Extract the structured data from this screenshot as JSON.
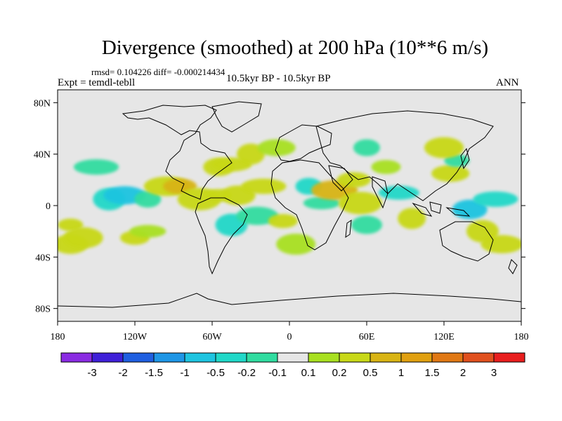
{
  "title": "Divergence (smoothed) at 200 hPa (10**6 m/s)",
  "stats": "rmsd= 0.104226 diff= -0.000214434",
  "experiment": "Expt = temdl-tebll",
  "period": "10.5kyr BP - 10.5kyr BP",
  "season": "ANN",
  "map": {
    "projection": "cylindrical equidistant",
    "lon_range": [
      -180,
      180
    ],
    "lat_range": [
      -90,
      90
    ],
    "background_color": "#e6e6e6",
    "coastline_color": "#000000",
    "lat_ticks": [
      {
        "value": 80,
        "label": "80N"
      },
      {
        "value": 40,
        "label": "40N"
      },
      {
        "value": 0,
        "label": "0"
      },
      {
        "value": -40,
        "label": "40S"
      },
      {
        "value": -80,
        "label": "80S"
      }
    ],
    "lon_ticks": [
      {
        "value": -180,
        "label": "180"
      },
      {
        "value": -120,
        "label": "120W"
      },
      {
        "value": -60,
        "label": "60W"
      },
      {
        "value": 0,
        "label": "0"
      },
      {
        "value": 60,
        "label": "60E"
      },
      {
        "value": 120,
        "label": "120E"
      },
      {
        "value": 180,
        "label": "180"
      }
    ]
  },
  "colorbar": {
    "colors": [
      "#8a2be2",
      "#3f20d8",
      "#1f5fe0",
      "#1e96e6",
      "#1ec4e0",
      "#20d8c8",
      "#30dca0",
      "#e6e6e6",
      "#a8e020",
      "#c8d818",
      "#d8b414",
      "#e0a010",
      "#e07814",
      "#e0501e",
      "#e81e1e"
    ],
    "labels": [
      "-3",
      "-2",
      "-1.5",
      "-1",
      "-0.5",
      "-0.2",
      "-0.1",
      "0.1",
      "0.2",
      "0.5",
      "1",
      "1.5",
      "2",
      "3"
    ]
  },
  "chart_data": {
    "type": "heatmap",
    "variable": "Divergence (smoothed) at 200 hPa",
    "units": "10**6 m/s",
    "levels": [
      -3,
      -2,
      -1.5,
      -1,
      -0.5,
      -0.2,
      -0.1,
      0.1,
      0.2,
      0.5,
      1,
      1.5,
      2,
      3
    ],
    "features": [
      {
        "lon": -170,
        "lat": -15,
        "value": 0.2
      },
      {
        "lon": -170,
        "lat": -30,
        "value": 0.3
      },
      {
        "lon": -150,
        "lat": 30,
        "value": -0.2
      },
      {
        "lon": -140,
        "lat": 5,
        "value": -0.4
      },
      {
        "lon": -128,
        "lat": 8,
        "value": -0.6
      },
      {
        "lon": -120,
        "lat": -25,
        "value": 0.2
      },
      {
        "lon": -160,
        "lat": -25,
        "value": 0.25
      },
      {
        "lon": -110,
        "lat": 5,
        "value": -0.15
      },
      {
        "lon": -110,
        "lat": -20,
        "value": 0.15
      },
      {
        "lon": -95,
        "lat": 15,
        "value": 0.3
      },
      {
        "lon": -85,
        "lat": 15,
        "value": 0.5
      },
      {
        "lon": -70,
        "lat": 5,
        "value": 0.2
      },
      {
        "lon": -55,
        "lat": 30,
        "value": 0.2
      },
      {
        "lon": -45,
        "lat": 32,
        "value": 0.2
      },
      {
        "lon": -30,
        "lat": 40,
        "value": 0.2
      },
      {
        "lon": -10,
        "lat": 45,
        "value": 0.15
      },
      {
        "lon": -55,
        "lat": 8,
        "value": 0.2
      },
      {
        "lon": -40,
        "lat": 8,
        "value": 0.3
      },
      {
        "lon": -20,
        "lat": 15,
        "value": 0.2
      },
      {
        "lon": -45,
        "lat": -15,
        "value": -0.3
      },
      {
        "lon": -25,
        "lat": -8,
        "value": -0.2
      },
      {
        "lon": -5,
        "lat": -12,
        "value": 0.2
      },
      {
        "lon": 5,
        "lat": -30,
        "value": 0.15
      },
      {
        "lon": 15,
        "lat": 15,
        "value": -0.3
      },
      {
        "lon": 25,
        "lat": 2,
        "value": -0.2
      },
      {
        "lon": 35,
        "lat": 12,
        "value": 0.5
      },
      {
        "lon": 50,
        "lat": 20,
        "value": 0.2
      },
      {
        "lon": 55,
        "lat": 2,
        "value": 0.3
      },
      {
        "lon": 60,
        "lat": -15,
        "value": -0.2
      },
      {
        "lon": 85,
        "lat": 10,
        "value": -0.5
      },
      {
        "lon": 95,
        "lat": -10,
        "value": 0.3
      },
      {
        "lon": 125,
        "lat": 25,
        "value": 0.2
      },
      {
        "lon": 130,
        "lat": 35,
        "value": -0.2
      },
      {
        "lon": 140,
        "lat": -3,
        "value": -0.6
      },
      {
        "lon": 160,
        "lat": 5,
        "value": -0.3
      },
      {
        "lon": 150,
        "lat": -20,
        "value": 0.3
      },
      {
        "lon": 165,
        "lat": -30,
        "value": 0.2
      },
      {
        "lon": 75,
        "lat": 30,
        "value": 0.15
      },
      {
        "lon": 120,
        "lat": 45,
        "value": 0.2
      },
      {
        "lon": 60,
        "lat": 45,
        "value": -0.15
      }
    ]
  }
}
